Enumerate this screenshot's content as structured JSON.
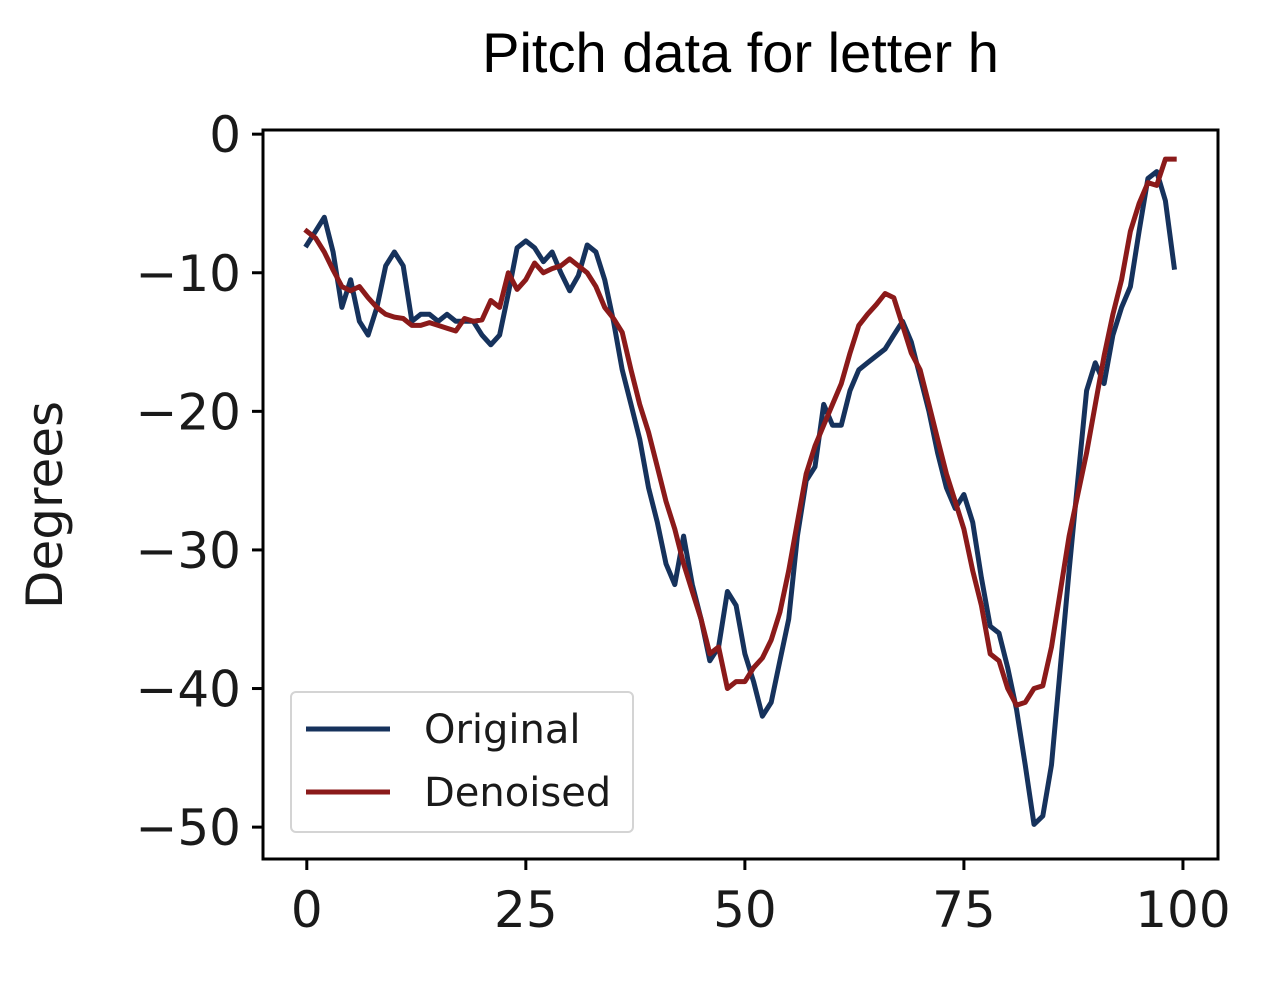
{
  "chart_data": {
    "type": "line",
    "title": "Pitch data for letter h",
    "xlabel": "",
    "ylabel": "Degrees",
    "xlim": [
      -5,
      104
    ],
    "ylim": [
      -52.3,
      0.3
    ],
    "xticks": [
      0,
      25,
      50,
      75,
      100
    ],
    "xtick_labels": [
      "0",
      "25",
      "50",
      "75",
      "100"
    ],
    "yticks": [
      0,
      -10,
      -20,
      -30,
      -40,
      -50
    ],
    "ytick_labels": [
      "0",
      "−10",
      "−20",
      "−30",
      "−40",
      "−50"
    ],
    "grid": false,
    "legend_position": "lower-left",
    "series": [
      {
        "name": "Original",
        "color": "#16325c",
        "x": [
          0,
          1,
          2,
          3,
          4,
          5,
          6,
          7,
          8,
          9,
          10,
          11,
          12,
          13,
          14,
          15,
          16,
          17,
          18,
          19,
          20,
          21,
          22,
          23,
          24,
          25,
          26,
          27,
          28,
          29,
          30,
          31,
          32,
          33,
          34,
          35,
          36,
          37,
          38,
          39,
          40,
          41,
          42,
          43,
          44,
          45,
          46,
          47,
          48,
          49,
          50,
          51,
          52,
          53,
          54,
          55,
          56,
          57,
          58,
          59,
          60,
          61,
          62,
          63,
          64,
          65,
          66,
          67,
          68,
          69,
          70,
          71,
          72,
          73,
          74,
          75,
          76,
          77,
          78,
          79,
          80,
          81,
          82,
          83,
          84,
          85,
          86,
          87,
          88,
          89,
          90,
          91,
          92,
          93,
          94,
          95,
          96,
          97,
          98,
          99
        ],
        "values": [
          -8,
          -7,
          -6,
          -8.5,
          -12.5,
          -10.5,
          -13.5,
          -14.5,
          -12.5,
          -9.5,
          -8.5,
          -9.5,
          -13.5,
          -13,
          -13,
          -13.5,
          -13,
          -13.5,
          -13.5,
          -13.5,
          -14.5,
          -15.2,
          -14.5,
          -11.5,
          -8.2,
          -7.7,
          -8.2,
          -9.2,
          -8.5,
          -10,
          -11.3,
          -10.2,
          -8,
          -8.5,
          -10.5,
          -13.5,
          -17,
          -19.5,
          -22,
          -25.5,
          -28,
          -31,
          -32.5,
          -29,
          -32.5,
          -35,
          -38,
          -37,
          -33,
          -34,
          -37.5,
          -39.5,
          -42,
          -41,
          -38,
          -35,
          -29,
          -25,
          -24,
          -19.5,
          -21,
          -21,
          -18.5,
          -17,
          -16.5,
          -16,
          -15.5,
          -14.5,
          -13.5,
          -15,
          -17.5,
          -20,
          -23,
          -25.5,
          -27,
          -26,
          -28,
          -32,
          -35.5,
          -36,
          -38.5,
          -41.5,
          -45.5,
          -49.8,
          -49.2,
          -45.5,
          -38.5,
          -31.5,
          -25,
          -18.5,
          -16.5,
          -18,
          -14.5,
          -12.5,
          -11,
          -7,
          -3.2,
          -2.7,
          -4.8,
          -9.6
        ]
      },
      {
        "name": "Denoised",
        "color": "#8b1a1a",
        "x": [
          0,
          1,
          2,
          3,
          4,
          5,
          6,
          7,
          8,
          9,
          10,
          11,
          12,
          13,
          14,
          15,
          16,
          17,
          18,
          19,
          20,
          21,
          22,
          23,
          24,
          25,
          26,
          27,
          28,
          29,
          30,
          31,
          32,
          33,
          34,
          35,
          36,
          37,
          38,
          39,
          40,
          41,
          42,
          43,
          44,
          45,
          46,
          47,
          48,
          49,
          50,
          51,
          52,
          53,
          54,
          55,
          56,
          57,
          58,
          59,
          60,
          61,
          62,
          63,
          64,
          65,
          66,
          67,
          68,
          69,
          70,
          71,
          72,
          73,
          74,
          75,
          76,
          77,
          78,
          79,
          80,
          81,
          82,
          83,
          84,
          85,
          86,
          87,
          88,
          89,
          90,
          91,
          92,
          93,
          94,
          95,
          96,
          97,
          98,
          99
        ],
        "values": [
          -7,
          -7.5,
          -8.5,
          -9.8,
          -11,
          -11.3,
          -11,
          -11.8,
          -12.5,
          -13,
          -13.2,
          -13.3,
          -13.8,
          -13.8,
          -13.6,
          -13.8,
          -14,
          -14.2,
          -13.3,
          -13.5,
          -13.4,
          -12,
          -12.5,
          -10,
          -11.2,
          -10.5,
          -9.3,
          -10,
          -9.7,
          -9.5,
          -9,
          -9.5,
          -10,
          -11,
          -12.5,
          -13.3,
          -14.3,
          -17,
          -19.5,
          -21.5,
          -24,
          -26.5,
          -28.5,
          -31,
          -33,
          -35,
          -37.5,
          -37,
          -40,
          -39.5,
          -39.5,
          -38.5,
          -37.8,
          -36.5,
          -34.5,
          -31.5,
          -28,
          -24.5,
          -22.5,
          -21,
          -19.5,
          -18,
          -15.8,
          -13.8,
          -13,
          -12.3,
          -11.5,
          -11.8,
          -13.8,
          -15.8,
          -17,
          -19.5,
          -22,
          -24.5,
          -26.5,
          -28.5,
          -31.5,
          -34,
          -37.5,
          -38,
          -40,
          -41.2,
          -41,
          -40,
          -39.8,
          -37,
          -33,
          -29,
          -26,
          -23,
          -19.5,
          -16,
          -13,
          -10.5,
          -7,
          -5,
          -3.5,
          -3.7,
          -1.8,
          -1.8
        ]
      }
    ]
  }
}
